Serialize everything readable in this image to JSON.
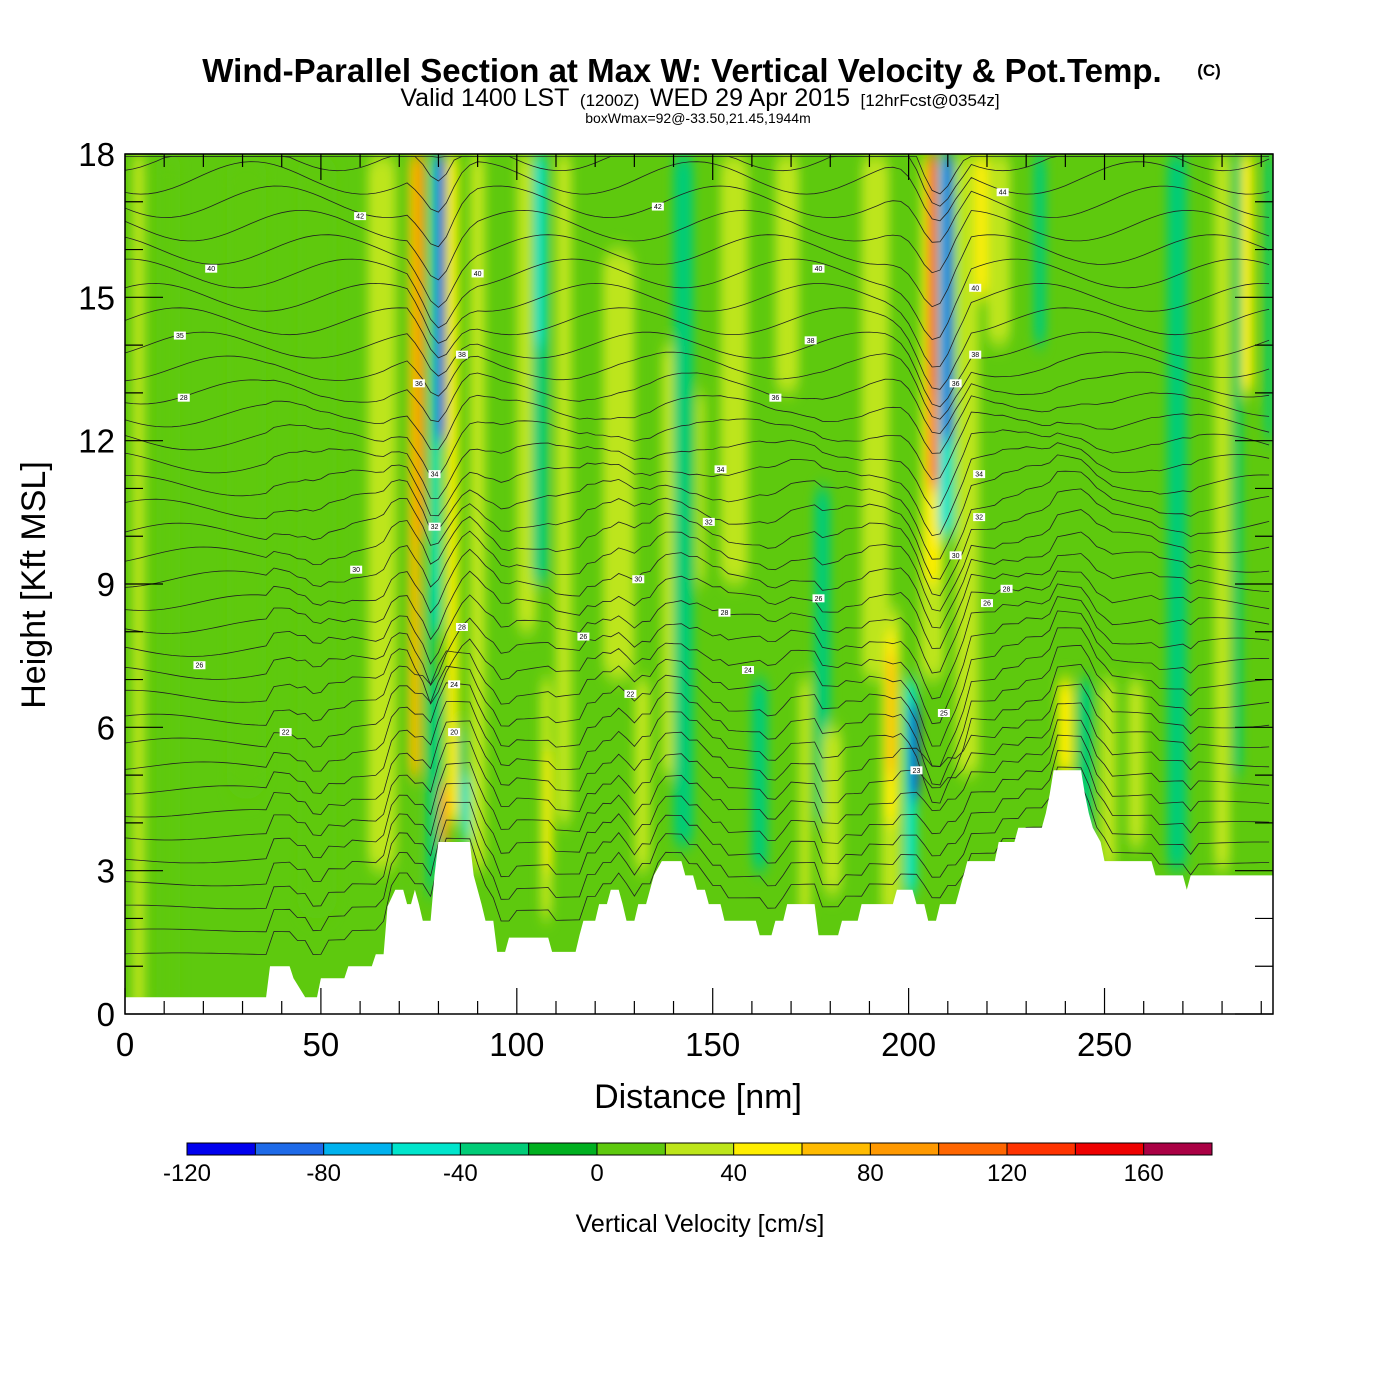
{
  "chart_data": {
    "type": "heatmap",
    "title": "Wind-Parallel Section at Max W: Vertical Velocity & Pot.Temp.",
    "title_mark": "(C)",
    "subtitle": {
      "valid": "Valid 1400 LST",
      "utc": "(1200Z)",
      "date": "WED 29 Apr 2015",
      "forecast": "[12hrFcst@0354z]"
    },
    "info_line": "boxWmax=92@-33.50,21.45,1944m",
    "xlabel": "Distance [nm]",
    "ylabel": "Height [Kft MSL]",
    "xlim": [
      0,
      293
    ],
    "ylim": [
      0,
      18
    ],
    "x_ticks": [
      0,
      50,
      100,
      150,
      200,
      250
    ],
    "y_ticks": [
      0,
      3,
      6,
      9,
      12,
      15,
      18
    ],
    "colorbar": {
      "title": "Vertical Velocity [cm/s]",
      "bounds": [
        -120,
        -100,
        -80,
        -60,
        -40,
        -20,
        0,
        20,
        40,
        60,
        80,
        100,
        120,
        140,
        160,
        180
      ],
      "colors": [
        "#0000ee",
        "#1e6ae8",
        "#00b2ee",
        "#00e5cc",
        "#00cc77",
        "#00b020",
        "#5ec90e",
        "#bde51a",
        "#ffee00",
        "#ffbb00",
        "#ff9900",
        "#ff6600",
        "#ff3300",
        "#ee0000",
        "#aa0044"
      ],
      "tick_labels": [
        "-120",
        "-80",
        "-40",
        "0",
        "40",
        "80",
        "120",
        "160"
      ]
    },
    "base_value_cm_s": 10,
    "updraft_columns": [
      {
        "x": 2,
        "w": 3,
        "ybot": 0,
        "ytop": 18,
        "v": 30
      },
      {
        "x": 8,
        "w": 6,
        "ybot": 0,
        "ytop": 18,
        "v": 5
      },
      {
        "x": 26,
        "w": 10,
        "ybot": 4.5,
        "ytop": 18,
        "v": 5
      },
      {
        "x": 44,
        "w": 10,
        "ybot": 2,
        "ytop": 18,
        "v": 5
      },
      {
        "x": 62,
        "w": 7,
        "ybot": 3,
        "ytop": 18,
        "v": 25
      },
      {
        "x": 70,
        "w": 4,
        "ybot": 2.5,
        "ytop": 18,
        "v": 5
      },
      {
        "x": 73,
        "w": 2.5,
        "ybot": 5,
        "ytop": 18,
        "v": 60
      },
      {
        "x": 74.5,
        "w": 2,
        "ybot": 10,
        "ytop": 18,
        "v": 80
      },
      {
        "x": 78,
        "w": 2.5,
        "ybot": 8,
        "ytop": 18,
        "v": -50
      },
      {
        "x": 79.5,
        "w": 2,
        "ybot": 12,
        "ytop": 18,
        "v": -110
      },
      {
        "x": 77,
        "w": 2,
        "ybot": 2.5,
        "ytop": 9,
        "v": -40
      },
      {
        "x": 79,
        "w": 2,
        "ybot": 3,
        "ytop": 7,
        "v": -30
      },
      {
        "x": 82,
        "w": 3,
        "ybot": 4,
        "ytop": 18,
        "v": 50
      },
      {
        "x": 80.5,
        "w": 2,
        "ybot": 3.5,
        "ytop": 4.8,
        "v": 90
      },
      {
        "x": 85,
        "w": 2,
        "ybot": 4,
        "ytop": 6,
        "v": -40
      },
      {
        "x": 86,
        "w": 2,
        "ybot": 3.6,
        "ytop": 5,
        "v": -50
      },
      {
        "x": 88,
        "w": 4,
        "ybot": 3,
        "ytop": 18,
        "v": 30
      },
      {
        "x": 100,
        "w": 5,
        "ybot": 8,
        "ytop": 18,
        "v": 30
      },
      {
        "x": 104,
        "w": 4,
        "ybot": 9,
        "ytop": 18,
        "v": -40
      },
      {
        "x": 105,
        "w": 2,
        "ybot": 14,
        "ytop": 18,
        "v": -50
      },
      {
        "x": 106,
        "w": 3,
        "ybot": 2,
        "ytop": 7,
        "v": 30
      },
      {
        "x": 107,
        "w": 2,
        "ybot": 3,
        "ytop": 5.5,
        "v": 45
      },
      {
        "x": 110,
        "w": 4,
        "ybot": 4,
        "ytop": 18,
        "v": 30
      },
      {
        "x": 122,
        "w": 8,
        "ybot": 7,
        "ytop": 16,
        "v": 30
      },
      {
        "x": 130,
        "w": 4,
        "ybot": 3,
        "ytop": 7,
        "v": 30
      },
      {
        "x": 137,
        "w": 4,
        "ybot": 5,
        "ytop": 14,
        "v": 30
      },
      {
        "x": 140,
        "w": 5,
        "ybot": 3.5,
        "ytop": 18,
        "v": -25
      },
      {
        "x": 146,
        "w": 2,
        "ybot": 9,
        "ytop": 13,
        "v": 30
      },
      {
        "x": 152,
        "w": 7,
        "ybot": 9,
        "ytop": 18,
        "v": 30
      },
      {
        "x": 166,
        "w": 6,
        "ybot": 13,
        "ytop": 18,
        "v": 30
      },
      {
        "x": 160,
        "w": 4,
        "ybot": 3,
        "ytop": 7,
        "v": -25
      },
      {
        "x": 172,
        "w": 3,
        "ybot": 2,
        "ytop": 7,
        "v": 30
      },
      {
        "x": 176,
        "w": 4,
        "ybot": 4,
        "ytop": 11,
        "v": -25
      },
      {
        "x": 178,
        "w": 5,
        "ybot": 2.5,
        "ytop": 6,
        "v": 30
      },
      {
        "x": 188,
        "w": 7,
        "ybot": 7,
        "ytop": 18,
        "v": 30
      },
      {
        "x": 193,
        "w": 5,
        "ybot": 2,
        "ytop": 8.5,
        "v": 30
      },
      {
        "x": 194,
        "w": 3,
        "ybot": 4,
        "ytop": 8,
        "v": 55
      },
      {
        "x": 194.5,
        "w": 2,
        "ybot": 5,
        "ytop": 7.5,
        "v": 75
      },
      {
        "x": 203,
        "w": 6,
        "ybot": 7,
        "ytop": 18,
        "v": 30
      },
      {
        "x": 204,
        "w": 4,
        "ybot": 9,
        "ytop": 18,
        "v": 55
      },
      {
        "x": 205,
        "w": 2.5,
        "ybot": 11,
        "ytop": 18,
        "v": 110
      },
      {
        "x": 205.5,
        "w": 1.5,
        "ybot": 13,
        "ytop": 18,
        "v": 150
      },
      {
        "x": 207.5,
        "w": 4,
        "ybot": 10,
        "ytop": 18,
        "v": -50
      },
      {
        "x": 209,
        "w": 2,
        "ybot": 12,
        "ytop": 18,
        "v": -110
      },
      {
        "x": 199,
        "w": 3,
        "ybot": 2.5,
        "ytop": 7,
        "v": -50
      },
      {
        "x": 200.5,
        "w": 2,
        "ybot": 4.5,
        "ytop": 6.5,
        "v": -110
      },
      {
        "x": 212,
        "w": 6,
        "ybot": 5,
        "ytop": 18,
        "v": 30
      },
      {
        "x": 217,
        "w": 4,
        "ybot": 15,
        "ytop": 18,
        "v": 50
      },
      {
        "x": 220,
        "w": 6,
        "ybot": 14,
        "ytop": 18,
        "v": 30
      },
      {
        "x": 232,
        "w": 3,
        "ybot": 14,
        "ytop": 18,
        "v": -25
      },
      {
        "x": 238,
        "w": 4,
        "ybot": 5,
        "ytop": 7,
        "v": 45
      },
      {
        "x": 243,
        "w": 4,
        "ybot": 3,
        "ytop": 7,
        "v": -25
      },
      {
        "x": 249,
        "w": 4,
        "ybot": 3,
        "ytop": 7,
        "v": 30
      },
      {
        "x": 256,
        "w": 4,
        "ybot": 3.5,
        "ytop": 7,
        "v": 30
      },
      {
        "x": 266,
        "w": 5,
        "ybot": 3,
        "ytop": 18,
        "v": -25
      },
      {
        "x": 278,
        "w": 4,
        "ybot": 3,
        "ytop": 18,
        "v": 30
      },
      {
        "x": 283,
        "w": 2,
        "ybot": 5,
        "ytop": 18,
        "v": -25
      },
      {
        "x": 285,
        "w": 3,
        "ybot": 13,
        "ytop": 18,
        "v": 55
      },
      {
        "x": 291,
        "w": 2,
        "ybot": 12,
        "ytop": 18,
        "v": -25
      }
    ],
    "terrain": [
      [
        0,
        0.35
      ],
      [
        36,
        0.35
      ],
      [
        37,
        1.0
      ],
      [
        42,
        1.0
      ],
      [
        43,
        0.75
      ],
      [
        46,
        0.35
      ],
      [
        49,
        0.35
      ],
      [
        50,
        0.75
      ],
      [
        56,
        0.75
      ],
      [
        57,
        1.0
      ],
      [
        63,
        1.0
      ],
      [
        64,
        1.25
      ],
      [
        66,
        1.25
      ],
      [
        67,
        2.25
      ],
      [
        69,
        2.6
      ],
      [
        71,
        2.6
      ],
      [
        72,
        2.3
      ],
      [
        73,
        2.3
      ],
      [
        74,
        2.6
      ],
      [
        75,
        2.3
      ],
      [
        76,
        1.95
      ],
      [
        78,
        1.95
      ],
      [
        79,
        2.9
      ],
      [
        80,
        3.6
      ],
      [
        88,
        3.6
      ],
      [
        89,
        2.9
      ],
      [
        91,
        2.3
      ],
      [
        92,
        1.95
      ],
      [
        94,
        1.95
      ],
      [
        95,
        1.3
      ],
      [
        97,
        1.3
      ],
      [
        98,
        1.6
      ],
      [
        108,
        1.6
      ],
      [
        109,
        1.3
      ],
      [
        115,
        1.3
      ],
      [
        116,
        1.65
      ],
      [
        117,
        1.95
      ],
      [
        120,
        1.95
      ],
      [
        121,
        2.3
      ],
      [
        123,
        2.3
      ],
      [
        124,
        2.6
      ],
      [
        126,
        2.6
      ],
      [
        127,
        2.3
      ],
      [
        128,
        1.95
      ],
      [
        130,
        1.95
      ],
      [
        131,
        2.3
      ],
      [
        133,
        2.3
      ],
      [
        134,
        2.6
      ],
      [
        135,
        2.9
      ],
      [
        137,
        3.2
      ],
      [
        142,
        3.2
      ],
      [
        143,
        2.9
      ],
      [
        145,
        2.9
      ],
      [
        146,
        2.6
      ],
      [
        148,
        2.6
      ],
      [
        149,
        2.3
      ],
      [
        152,
        2.3
      ],
      [
        153,
        1.95
      ],
      [
        161,
        1.95
      ],
      [
        162,
        1.65
      ],
      [
        165,
        1.65
      ],
      [
        166,
        1.95
      ],
      [
        168,
        1.95
      ],
      [
        169,
        2.3
      ],
      [
        176,
        2.3
      ],
      [
        177,
        1.65
      ],
      [
        182,
        1.65
      ],
      [
        183,
        1.95
      ],
      [
        187,
        1.95
      ],
      [
        188,
        2.3
      ],
      [
        196,
        2.3
      ],
      [
        197,
        2.6
      ],
      [
        201,
        2.6
      ],
      [
        202,
        2.3
      ],
      [
        204,
        2.3
      ],
      [
        205,
        1.95
      ],
      [
        207,
        1.95
      ],
      [
        208,
        2.3
      ],
      [
        212,
        2.3
      ],
      [
        213,
        2.6
      ],
      [
        214,
        2.9
      ],
      [
        215,
        3.2
      ],
      [
        222,
        3.2
      ],
      [
        223,
        3.6
      ],
      [
        227,
        3.6
      ],
      [
        228,
        3.9
      ],
      [
        234,
        3.9
      ],
      [
        235,
        4.2
      ],
      [
        236,
        4.6
      ],
      [
        237,
        5.1
      ],
      [
        244,
        5.1
      ],
      [
        245,
        4.6
      ],
      [
        246,
        4.2
      ],
      [
        247,
        3.9
      ],
      [
        249,
        3.6
      ],
      [
        250,
        3.2
      ],
      [
        262,
        3.2
      ],
      [
        263,
        2.9
      ],
      [
        270,
        2.9
      ],
      [
        271,
        2.6
      ],
      [
        272,
        2.9
      ],
      [
        293,
        2.9
      ]
    ],
    "theta_contours": {
      "levels_count": 36,
      "labels": [
        {
          "x": 60,
          "y": 16.7,
          "text": "42"
        },
        {
          "x": 22,
          "y": 15.6,
          "text": "40"
        },
        {
          "x": 14,
          "y": 14.2,
          "text": "35"
        },
        {
          "x": 15,
          "y": 12.9,
          "text": "28"
        },
        {
          "x": 59,
          "y": 9.3,
          "text": "30"
        },
        {
          "x": 19,
          "y": 7.3,
          "text": "26"
        },
        {
          "x": 41,
          "y": 5.9,
          "text": "22"
        },
        {
          "x": 136,
          "y": 16.9,
          "text": "42"
        },
        {
          "x": 90,
          "y": 15.5,
          "text": "40"
        },
        {
          "x": 86,
          "y": 13.8,
          "text": "38"
        },
        {
          "x": 75,
          "y": 13.2,
          "text": "36"
        },
        {
          "x": 79,
          "y": 11.3,
          "text": "34"
        },
        {
          "x": 79,
          "y": 10.2,
          "text": "32"
        },
        {
          "x": 86,
          "y": 8.1,
          "text": "28"
        },
        {
          "x": 84,
          "y": 6.9,
          "text": "24"
        },
        {
          "x": 84,
          "y": 5.9,
          "text": "20"
        },
        {
          "x": 131,
          "y": 9.1,
          "text": "30"
        },
        {
          "x": 117,
          "y": 7.9,
          "text": "26"
        },
        {
          "x": 129,
          "y": 6.7,
          "text": "22"
        },
        {
          "x": 166,
          "y": 12.9,
          "text": "36"
        },
        {
          "x": 175,
          "y": 14.1,
          "text": "38"
        },
        {
          "x": 177,
          "y": 15.6,
          "text": "40"
        },
        {
          "x": 152,
          "y": 11.4,
          "text": "34"
        },
        {
          "x": 149,
          "y": 10.3,
          "text": "32"
        },
        {
          "x": 153,
          "y": 8.4,
          "text": "28"
        },
        {
          "x": 159,
          "y": 7.2,
          "text": "24"
        },
        {
          "x": 177,
          "y": 8.7,
          "text": "26"
        },
        {
          "x": 224,
          "y": 17.2,
          "text": "44"
        },
        {
          "x": 217,
          "y": 15.2,
          "text": "40"
        },
        {
          "x": 217,
          "y": 13.8,
          "text": "38"
        },
        {
          "x": 212,
          "y": 13.2,
          "text": "36"
        },
        {
          "x": 218,
          "y": 11.3,
          "text": "34"
        },
        {
          "x": 218,
          "y": 10.4,
          "text": "32"
        },
        {
          "x": 212,
          "y": 9.6,
          "text": "30"
        },
        {
          "x": 225,
          "y": 8.9,
          "text": "28"
        },
        {
          "x": 220,
          "y": 8.6,
          "text": "26"
        },
        {
          "x": 209,
          "y": 6.3,
          "text": "25"
        },
        {
          "x": 202,
          "y": 5.1,
          "text": "23"
        }
      ]
    }
  }
}
